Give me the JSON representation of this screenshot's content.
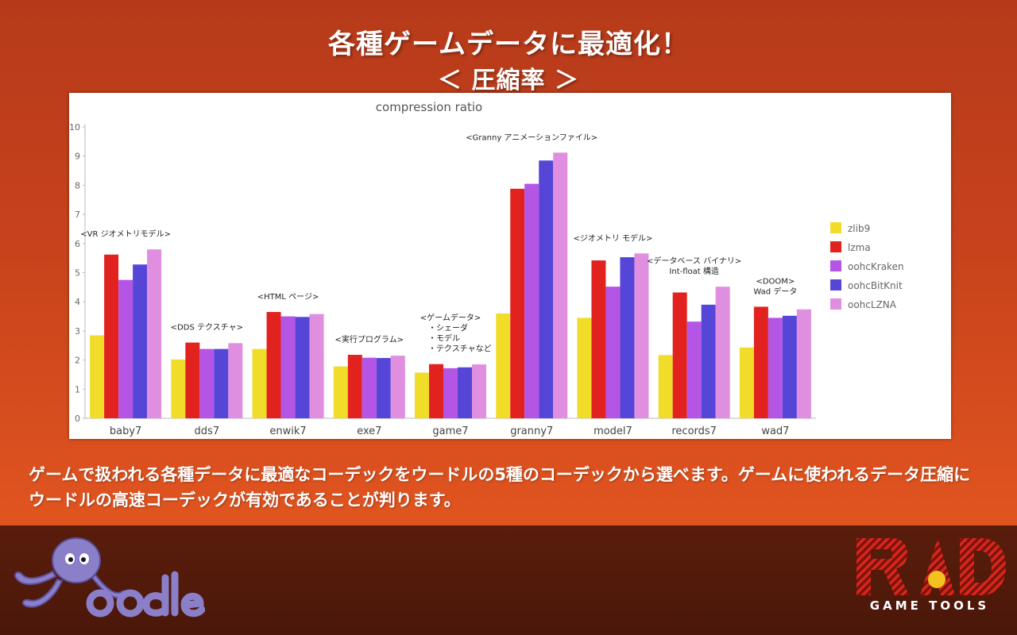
{
  "slide": {
    "title": "各種ゲームデータに最適化！",
    "subtitle": "＜ 圧縮率 ＞",
    "caption_line1": "ゲームで扱われる各種データに最適なコーデックをウードルの5種のコーデックから選べます。ゲームに使われるデータ圧縮に",
    "caption_line2": "ウードルの高速コーデックが有効であることが判ります。",
    "brand_left": "Oodle",
    "brand_right": "RAD",
    "brand_right_sub": "GAME TOOLS"
  },
  "chart_data": {
    "type": "bar",
    "title": "compression ratio",
    "xlabel": "",
    "ylabel": "",
    "ylim": [
      0,
      10
    ],
    "yticks": [
      0,
      1,
      2,
      3,
      4,
      5,
      6,
      7,
      8,
      9,
      10
    ],
    "grid": false,
    "legend_position": "right",
    "categories": [
      "baby7",
      "dds7",
      "enwik7",
      "exe7",
      "game7",
      "granny7",
      "model7",
      "records7",
      "wad7"
    ],
    "series": [
      {
        "name": "zlib9",
        "color": "#f2dc2a",
        "values": [
          2.85,
          2.02,
          2.38,
          1.78,
          1.57,
          3.6,
          3.45,
          2.17,
          2.43
        ]
      },
      {
        "name": "lzma",
        "color": "#e2221e",
        "values": [
          5.62,
          2.6,
          3.65,
          2.18,
          1.86,
          7.88,
          5.42,
          4.32,
          3.83
        ]
      },
      {
        "name": "oohcKraken",
        "color": "#b455e6",
        "values": [
          4.75,
          2.38,
          3.5,
          2.08,
          1.72,
          8.05,
          4.52,
          3.32,
          3.45
        ]
      },
      {
        "name": "oohcBitKnit",
        "color": "#5646d8",
        "values": [
          5.28,
          2.38,
          3.48,
          2.07,
          1.75,
          8.85,
          5.53,
          3.9,
          3.52
        ]
      },
      {
        "name": "oohcLZNA",
        "color": "#e08fe0",
        "values": [
          5.8,
          2.58,
          3.58,
          2.15,
          1.85,
          9.12,
          5.66,
          4.52,
          3.74
        ]
      }
    ],
    "annotations": [
      {
        "category": "baby7",
        "lines": [
          "<VR ジオメトリモデル>"
        ]
      },
      {
        "category": "dds7",
        "lines": [
          "<DDS テクスチャ>"
        ]
      },
      {
        "category": "enwik7",
        "lines": [
          "<HTML ページ>"
        ]
      },
      {
        "category": "exe7",
        "lines": [
          "<実行プログラム>"
        ]
      },
      {
        "category": "game7",
        "lines": [
          "<ゲームデータ>",
          "・シェーダ",
          "・モデル",
          "・テクスチャなど"
        ]
      },
      {
        "category": "granny7",
        "lines": [
          "<Granny アニメーションファイル>"
        ]
      },
      {
        "category": "model7",
        "lines": [
          "<ジオメトリ モデル>"
        ]
      },
      {
        "category": "records7",
        "lines": [
          "<データベース バイナリ>",
          "Int-float 構造"
        ]
      },
      {
        "category": "wad7",
        "lines": [
          "<DOOM>",
          "Wad データ"
        ]
      }
    ]
  }
}
